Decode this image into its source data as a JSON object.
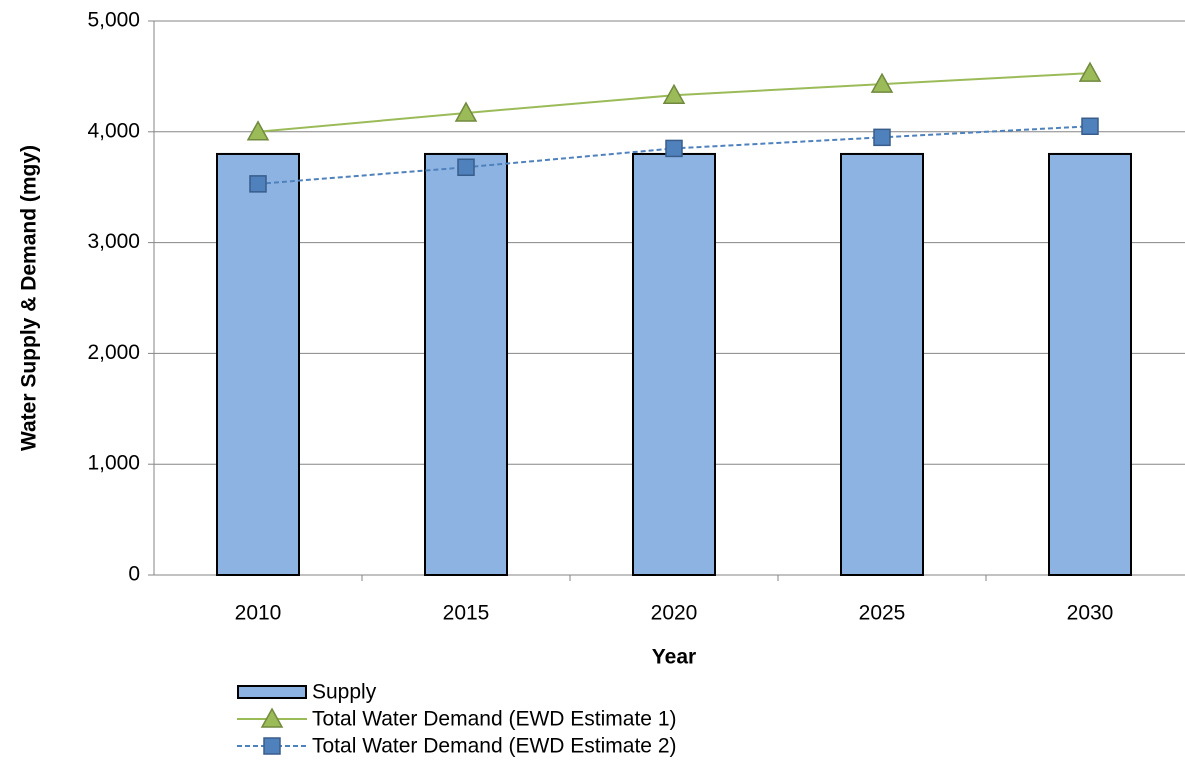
{
  "chart_data": {
    "type": "bar",
    "y_axis_label": "Water Supply & Demand (mgy)",
    "x_axis_label": "Year",
    "categories": [
      "2010",
      "2015",
      "2020",
      "2025",
      "2030"
    ],
    "ylim": [
      0,
      5000
    ],
    "yticks": [
      0,
      {
        "value": 1000,
        "label": "1,000"
      },
      {
        "value": 2000,
        "label": "2,000"
      },
      {
        "value": 3000,
        "label": "3,000"
      },
      {
        "value": 4000,
        "label": "4,000"
      },
      {
        "value": 5000,
        "label": "5,000"
      }
    ],
    "grid": true,
    "legend": "bottom",
    "series": [
      {
        "name": "Supply",
        "type": "bar",
        "color": "#8db3e2",
        "values": [
          3800,
          3800,
          3800,
          3800,
          3800
        ]
      },
      {
        "name": "Total Water Demand (EWD Estimate 1)",
        "type": "line",
        "color": "#9bbb59",
        "marker": "triangle",
        "line_style": "solid",
        "values": [
          4000,
          4170,
          4330,
          4430,
          4530
        ]
      },
      {
        "name": "Total Water Demand (EWD Estimate 2)",
        "type": "line",
        "color": "#4f81bd",
        "marker": "square",
        "line_style": "dashed",
        "values": [
          3530,
          3680,
          3850,
          3950,
          4050
        ]
      }
    ]
  }
}
